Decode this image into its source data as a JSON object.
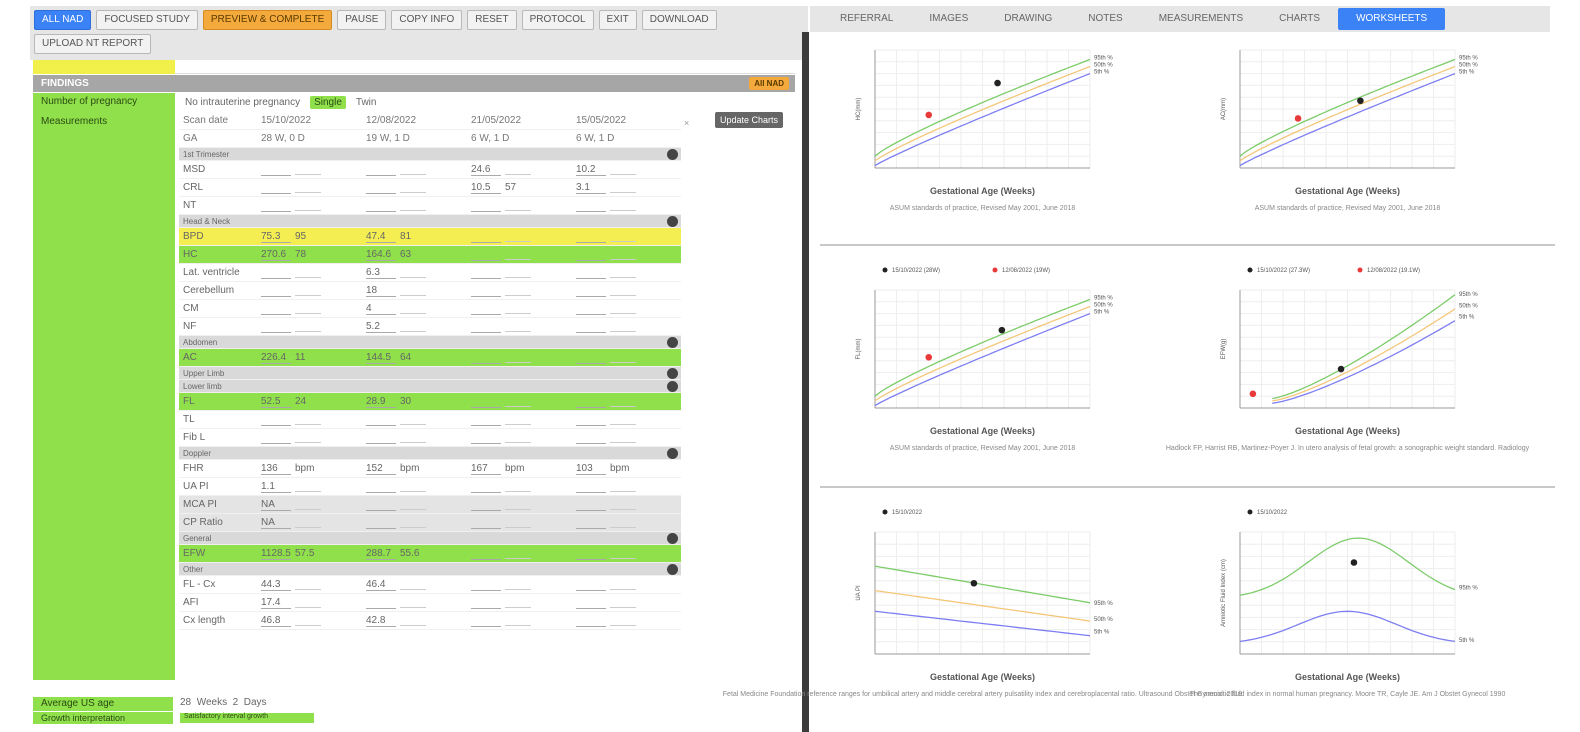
{
  "toolbar": {
    "row1": [
      "ALL NAD",
      "FOCUSED STUDY",
      "PREVIEW & COMPLETE",
      "PAUSE",
      "COPY INFO",
      "RESET",
      "PROTOCOL",
      "EXIT",
      "DOWNLOAD"
    ],
    "row2": [
      "UPLOAD NT REPORT"
    ]
  },
  "findings": {
    "title": "FINDINGS",
    "all_nad": "All NAD",
    "number_of_pregnancy_label": "Number of pregnancy",
    "measurements_label": "Measurements",
    "pregnancy_options": [
      "No intrauterine pregnancy",
      "Single",
      "Twin"
    ],
    "update_charts": "Update Charts",
    "header": {
      "scan_date": "Scan date",
      "ga": "GA",
      "dates": [
        "15/10/2022",
        "12/08/2022",
        "21/05/2022",
        "15/05/2022"
      ],
      "gas": [
        "28 W, 0 D",
        "19 W, 1 D",
        "6 W, 1 D",
        "6 W, 1 D"
      ]
    },
    "sections": {
      "first": "1st Trimester",
      "head": "Head & Neck",
      "abdomen": "Abdomen",
      "upper": "Upper Limb",
      "lower": "Lower limb",
      "doppler": "Doppler",
      "general": "General",
      "other": "Other"
    },
    "rows": {
      "msd": {
        "label": "MSD",
        "values": [
          "",
          "",
          "24.6",
          "10.2"
        ]
      },
      "crl": {
        "label": "CRL",
        "values": [
          "",
          "",
          "10.5",
          "3.1"
        ],
        "extra": "57"
      },
      "nt": {
        "label": "NT",
        "values": [
          "",
          "",
          "",
          ""
        ]
      },
      "bpd": {
        "label": "BPD",
        "values": [
          "75.3",
          "47.4",
          "",
          ""
        ],
        "pct": [
          "95",
          "81"
        ]
      },
      "hc": {
        "label": "HC",
        "values": [
          "270.6",
          "164.6",
          "",
          ""
        ],
        "pct": [
          "78",
          "63"
        ]
      },
      "lat": {
        "label": "Lat. ventricle",
        "values": [
          "",
          "6.3",
          "",
          ""
        ]
      },
      "cereb": {
        "label": "Cerebellum",
        "values": [
          "",
          "18",
          "",
          ""
        ]
      },
      "cm": {
        "label": "CM",
        "values": [
          "",
          "4",
          "",
          ""
        ]
      },
      "nf": {
        "label": "NF",
        "values": [
          "",
          "5.2",
          "",
          ""
        ]
      },
      "ac": {
        "label": "AC",
        "values": [
          "226.4",
          "144.5",
          "",
          ""
        ],
        "pct": [
          "11",
          "64"
        ]
      },
      "fl": {
        "label": "FL",
        "values": [
          "52.5",
          "28.9",
          "",
          ""
        ],
        "pct": [
          "24",
          "30"
        ]
      },
      "tl": {
        "label": "TL",
        "values": [
          "",
          "",
          "",
          ""
        ]
      },
      "fbl": {
        "label": "Fib L",
        "values": [
          "",
          "",
          "",
          ""
        ]
      },
      "fhr": {
        "label": "FHR",
        "values": [
          "136",
          "152",
          "167",
          "103"
        ],
        "unit": "bpm"
      },
      "uapi": {
        "label": "UA PI",
        "values": [
          "1.1",
          "",
          "",
          ""
        ]
      },
      "mcapi": {
        "label": "MCA PI",
        "values": [
          "NA",
          "",
          "",
          ""
        ]
      },
      "cpr": {
        "label": "CP Ratio",
        "values": [
          "NA",
          "",
          "",
          ""
        ]
      },
      "efw": {
        "label": "EFW",
        "values": [
          "1128.5",
          "288.7",
          "",
          ""
        ],
        "pct": [
          "57.5",
          "55.6"
        ]
      },
      "flcx": {
        "label": "FL - Cx",
        "values": [
          "44.3",
          "46.4",
          "",
          ""
        ]
      },
      "afi": {
        "label": "AFI",
        "values": [
          "17.4",
          "",
          "",
          ""
        ]
      },
      "cx": {
        "label": "Cx length",
        "values": [
          "46.8",
          "42.8",
          "",
          ""
        ]
      }
    },
    "average_label": "Average US age",
    "average_value": "28",
    "weeks_label": "Weeks",
    "weeks_value": "2",
    "days_label": "Days",
    "growth_label": "Growth interpretation",
    "growth_note": "Satisfactory interval growth"
  },
  "tabs": [
    "REFERRAL",
    "IMAGES",
    "DRAWING",
    "NOTES",
    "MEASUREMENTS",
    "CHARTS",
    "WORKSHEETS"
  ],
  "charts": {
    "xlabel": "Gestational Age (Weeks)",
    "ylabels": [
      "HC(mm)",
      "AC(mm)",
      "FL(mm)",
      "EFW(g)",
      "UA PI",
      "Amniotic Fluid Index (cm)"
    ],
    "captions": [
      "ASUM standards of practice, Revised May 2001, June 2018",
      "ASUM standards of practice, Revised May 2001, June 2018",
      "ASUM standards of practice, Revised May 2001, June 2018",
      "Hadlock FP, Harrist RB, Martinez-Poyer J. In utero analysis of fetal growth: a sonographic weight standard. Radiology",
      "Fetal Medicine Foundation reference ranges for umbilical artery and middle cerebral artery pulsatility index and cerebroplacental ratio. Ultrasound Obstet Gynecol. 2019",
      "The amniotic fluid index in normal human pregnancy. Moore TR, Cayle JE. Am J Obstet Gynecol 1990"
    ],
    "legend_a": [
      "15/10/2022 (28W)",
      "12/08/2022 (19W)"
    ],
    "legend_b": [
      "15/10/2022 (27.3W)",
      "12/08/2022 (19.1W)"
    ],
    "legend_c": [
      "15/10/2022"
    ],
    "percentiles": [
      "95th %",
      "50th %",
      "5th %"
    ],
    "colors": {
      "upper": "#7ccc6a",
      "mid": "#f4c77b",
      "lower": "#7e7ef2",
      "pt1": "#222222",
      "pt2": "#e83a3a"
    }
  }
}
